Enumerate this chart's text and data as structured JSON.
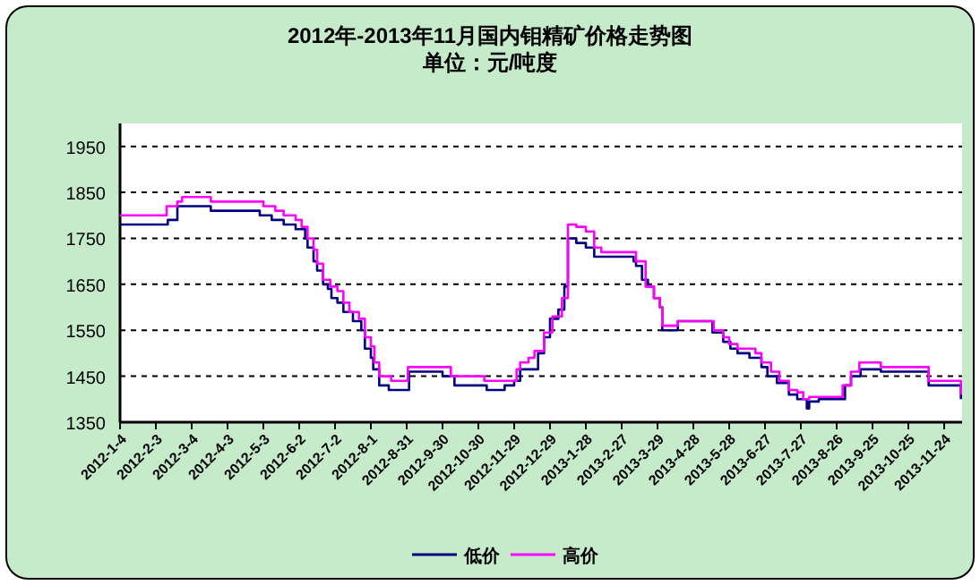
{
  "chart_data": {
    "type": "step",
    "title": "2012年-2013年11月国内钼精矿价格走势图",
    "subtitle": "单位：元/吨度",
    "xlim": [
      "2012-01-04",
      "2013-12-09"
    ],
    "ylim": [
      1350,
      2000
    ],
    "yticks": [
      1350,
      1450,
      1550,
      1650,
      1750,
      1850,
      1950
    ],
    "xticks": [
      {
        "value": "2012-01-04",
        "label": "2012-1-4"
      },
      {
        "value": "2012-02-03",
        "label": "2012-2-3"
      },
      {
        "value": "2012-03-04",
        "label": "2012-3-4"
      },
      {
        "value": "2012-04-03",
        "label": "2012-4-3"
      },
      {
        "value": "2012-05-03",
        "label": "2012-5-3"
      },
      {
        "value": "2012-06-02",
        "label": "2012-6-2"
      },
      {
        "value": "2012-07-02",
        "label": "2012-7-2"
      },
      {
        "value": "2012-08-01",
        "label": "2012-8-1"
      },
      {
        "value": "2012-08-31",
        "label": "2012-8-31"
      },
      {
        "value": "2012-09-30",
        "label": "2012-9-30"
      },
      {
        "value": "2012-10-30",
        "label": "2012-10-30"
      },
      {
        "value": "2012-11-29",
        "label": "2012-11-29"
      },
      {
        "value": "2012-12-29",
        "label": "2012-12-29"
      },
      {
        "value": "2013-01-28",
        "label": "2013-1-28"
      },
      {
        "value": "2013-02-27",
        "label": "2013-2-27"
      },
      {
        "value": "2013-03-29",
        "label": "2013-3-29"
      },
      {
        "value": "2013-04-28",
        "label": "2013-4-28"
      },
      {
        "value": "2013-05-28",
        "label": "2013-5-28"
      },
      {
        "value": "2013-06-27",
        "label": "2013-6-27"
      },
      {
        "value": "2013-07-27",
        "label": "2013-7-27"
      },
      {
        "value": "2013-08-26",
        "label": "2013-8-26"
      },
      {
        "value": "2013-09-25",
        "label": "2013-9-25"
      },
      {
        "value": "2013-10-25",
        "label": "2013-10-25"
      },
      {
        "value": "2013-11-24",
        "label": "2013-11-24"
      }
    ],
    "grid": "y",
    "legend": "bottom",
    "line_style": "solid",
    "marker": "none",
    "series": [
      {
        "name": "低价",
        "color": "#000080",
        "x": [
          "2012-01-04",
          "2012-02-13",
          "2012-02-21",
          "2012-03-20",
          "2012-04-30",
          "2012-05-10",
          "2012-05-20",
          "2012-05-30",
          "2012-06-07",
          "2012-06-09",
          "2012-06-14",
          "2012-06-17",
          "2012-06-22",
          "2012-06-26",
          "2012-06-29",
          "2012-07-04",
          "2012-07-09",
          "2012-07-17",
          "2012-07-24",
          "2012-07-27",
          "2012-08-01",
          "2012-08-03",
          "2012-08-08",
          "2012-08-16",
          "2012-09-02",
          "2012-09-30",
          "2012-10-10",
          "2012-11-06",
          "2012-11-21",
          "2012-11-29",
          "2012-12-04",
          "2012-12-19",
          "2012-12-24",
          "2012-12-29",
          "2013-01-05",
          "2013-01-10",
          "2013-01-13",
          "2013-01-20",
          "2013-01-28",
          "2013-02-04",
          "2013-03-09",
          "2013-03-11",
          "2013-03-16",
          "2013-03-21",
          "2013-03-26",
          "2013-03-31",
          "2013-04-02",
          "2013-04-15",
          "2013-05-14",
          "2013-05-23",
          "2013-05-29",
          "2013-06-04",
          "2013-06-14",
          "2013-06-24",
          "2013-06-29",
          "2013-07-07",
          "2013-07-17",
          "2013-07-24",
          "2013-08-01",
          "2013-08-03",
          "2013-08-11",
          "2013-09-02",
          "2013-09-07",
          "2013-09-15",
          "2013-10-02",
          "2013-11-11",
          "2013-12-08"
        ],
        "values": [
          1780,
          1790,
          1820,
          1810,
          1800,
          1790,
          1780,
          1770,
          1750,
          1730,
          1700,
          1680,
          1650,
          1640,
          1620,
          1610,
          1590,
          1570,
          1550,
          1510,
          1490,
          1465,
          1430,
          1420,
          1460,
          1450,
          1430,
          1420,
          1430,
          1440,
          1465,
          1500,
          1535,
          1575,
          1595,
          1645,
          1750,
          1740,
          1730,
          1710,
          1700,
          1690,
          1660,
          1645,
          1620,
          1600,
          1550,
          1570,
          1545,
          1525,
          1510,
          1500,
          1490,
          1470,
          1450,
          1435,
          1410,
          1400,
          1380,
          1395,
          1400,
          1430,
          1450,
          1465,
          1460,
          1430,
          1400
        ]
      },
      {
        "name": "高价",
        "color": "#ff00ff",
        "x": [
          "2012-01-04",
          "2012-02-12",
          "2012-02-21",
          "2012-02-25",
          "2012-03-20",
          "2012-05-03",
          "2012-05-13",
          "2012-05-20",
          "2012-05-30",
          "2012-06-04",
          "2012-06-09",
          "2012-06-14",
          "2012-06-17",
          "2012-06-22",
          "2012-06-28",
          "2012-07-04",
          "2012-07-09",
          "2012-07-14",
          "2012-07-22",
          "2012-07-27",
          "2012-08-01",
          "2012-08-04",
          "2012-08-08",
          "2012-08-18",
          "2012-09-01",
          "2012-10-07",
          "2012-11-04",
          "2012-12-01",
          "2012-12-04",
          "2012-12-11",
          "2012-12-16",
          "2012-12-24",
          "2012-12-31",
          "2013-01-08",
          "2013-01-13",
          "2013-01-20",
          "2013-01-28",
          "2013-02-04",
          "2013-02-10",
          "2013-03-11",
          "2013-03-19",
          "2013-03-26",
          "2013-03-31",
          "2013-04-02",
          "2013-04-15",
          "2013-05-15",
          "2013-05-23",
          "2013-05-28",
          "2013-06-04",
          "2013-06-19",
          "2013-06-24",
          "2013-07-02",
          "2013-07-09",
          "2013-07-17",
          "2013-07-24",
          "2013-07-29",
          "2013-08-03",
          "2013-08-31",
          "2013-09-07",
          "2013-09-14",
          "2013-10-02",
          "2013-11-11",
          "2013-12-08"
        ],
        "values": [
          1800,
          1820,
          1830,
          1840,
          1830,
          1820,
          1810,
          1800,
          1790,
          1775,
          1750,
          1725,
          1695,
          1660,
          1645,
          1635,
          1610,
          1590,
          1575,
          1535,
          1515,
          1480,
          1450,
          1440,
          1470,
          1450,
          1440,
          1465,
          1480,
          1490,
          1505,
          1545,
          1580,
          1620,
          1780,
          1775,
          1765,
          1730,
          1720,
          1700,
          1645,
          1620,
          1600,
          1560,
          1570,
          1550,
          1535,
          1520,
          1510,
          1500,
          1480,
          1460,
          1440,
          1420,
          1415,
          1400,
          1405,
          1430,
          1460,
          1480,
          1470,
          1440,
          1410
        ]
      }
    ]
  }
}
